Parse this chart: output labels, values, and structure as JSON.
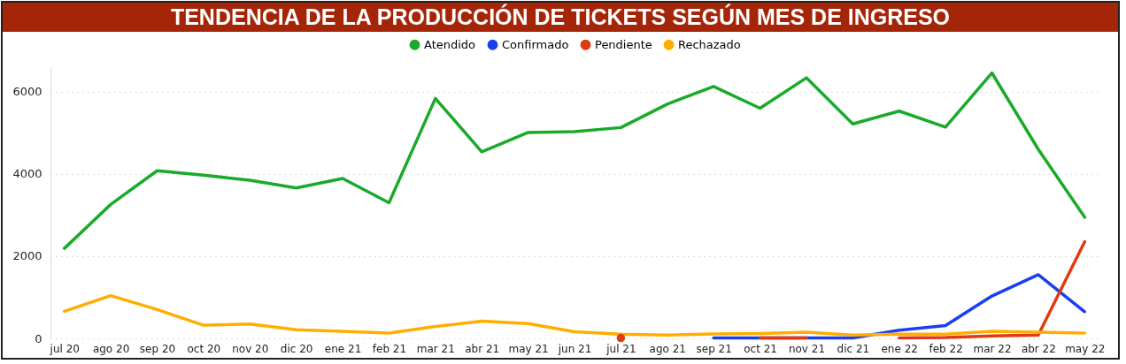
{
  "chart_data": {
    "type": "line",
    "title": "TENDENCIA DE LA PRODUCCIÓN DE TICKETS SEGÚN MES DE INGRESO",
    "categories": [
      "jul 20",
      "ago 20",
      "sep 20",
      "oct 20",
      "nov 20",
      "dic 20",
      "ene 21",
      "feb 21",
      "mar 21",
      "abr 21",
      "may 21",
      "jun 21",
      "jul 21",
      "ago 21",
      "sep 21",
      "oct 21",
      "nov 21",
      "dic 21",
      "ene 22",
      "feb 22",
      "mar 22",
      "abr 22",
      "may 22"
    ],
    "series": [
      {
        "name": "Atendido",
        "color": "#1aaa2a",
        "values": [
          2190,
          3260,
          4080,
          3970,
          3850,
          3660,
          3890,
          3300,
          5840,
          4540,
          5010,
          5030,
          5130,
          5700,
          6130,
          5600,
          6340,
          5220,
          5530,
          5140,
          6460,
          4600,
          2950
        ]
      },
      {
        "name": "Confirmado",
        "color": "#1a3ff0",
        "values": [
          null,
          null,
          null,
          null,
          null,
          null,
          null,
          null,
          null,
          null,
          null,
          null,
          null,
          null,
          10,
          10,
          10,
          10,
          200,
          310,
          1030,
          1550,
          650
        ]
      },
      {
        "name": "Pendiente",
        "color": "#e03a10",
        "values": [
          null,
          null,
          null,
          null,
          null,
          null,
          null,
          null,
          null,
          null,
          null,
          null,
          10,
          null,
          null,
          10,
          10,
          null,
          10,
          20,
          60,
          80,
          2350
        ]
      },
      {
        "name": "Rechazado",
        "color": "#ffae00",
        "values": [
          660,
          1040,
          700,
          320,
          350,
          210,
          170,
          130,
          290,
          420,
          360,
          160,
          100,
          80,
          110,
          120,
          150,
          80,
          100,
          100,
          170,
          150,
          130
        ]
      }
    ],
    "ylim": [
      0,
      6600
    ],
    "yticks": [
      0,
      2000,
      4000,
      6000
    ],
    "grid": "y",
    "legend": "top"
  }
}
